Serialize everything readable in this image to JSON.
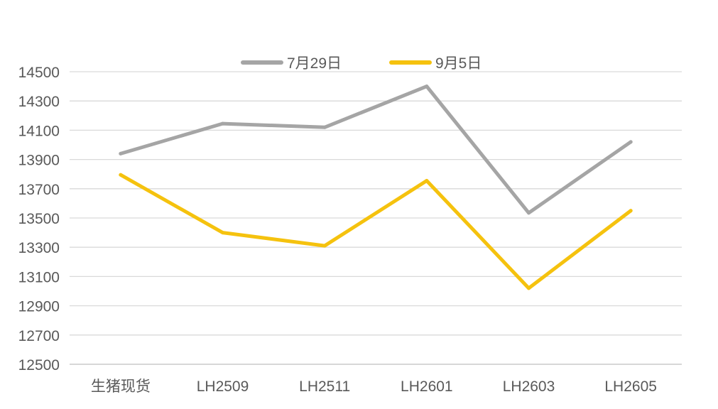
{
  "chart_data": {
    "type": "line",
    "title": "",
    "xlabel": "",
    "ylabel": "",
    "categories": [
      "生猪现货",
      "LH2509",
      "LH2511",
      "LH2601",
      "LH2603",
      "LH2605"
    ],
    "ylim": [
      12500,
      14500
    ],
    "yticks": [
      12500,
      12700,
      12900,
      13100,
      13300,
      13500,
      13700,
      13900,
      14100,
      14300,
      14500
    ],
    "grid": true,
    "legend_position": "top-center",
    "series": [
      {
        "name": "7月29日",
        "color": "#A5A5A5",
        "values": [
          13940,
          14145,
          14120,
          14400,
          13535,
          14020
        ]
      },
      {
        "name": "9月5日",
        "color": "#F5C20E",
        "values": [
          13795,
          13400,
          13310,
          13755,
          13020,
          13550
        ]
      }
    ]
  }
}
